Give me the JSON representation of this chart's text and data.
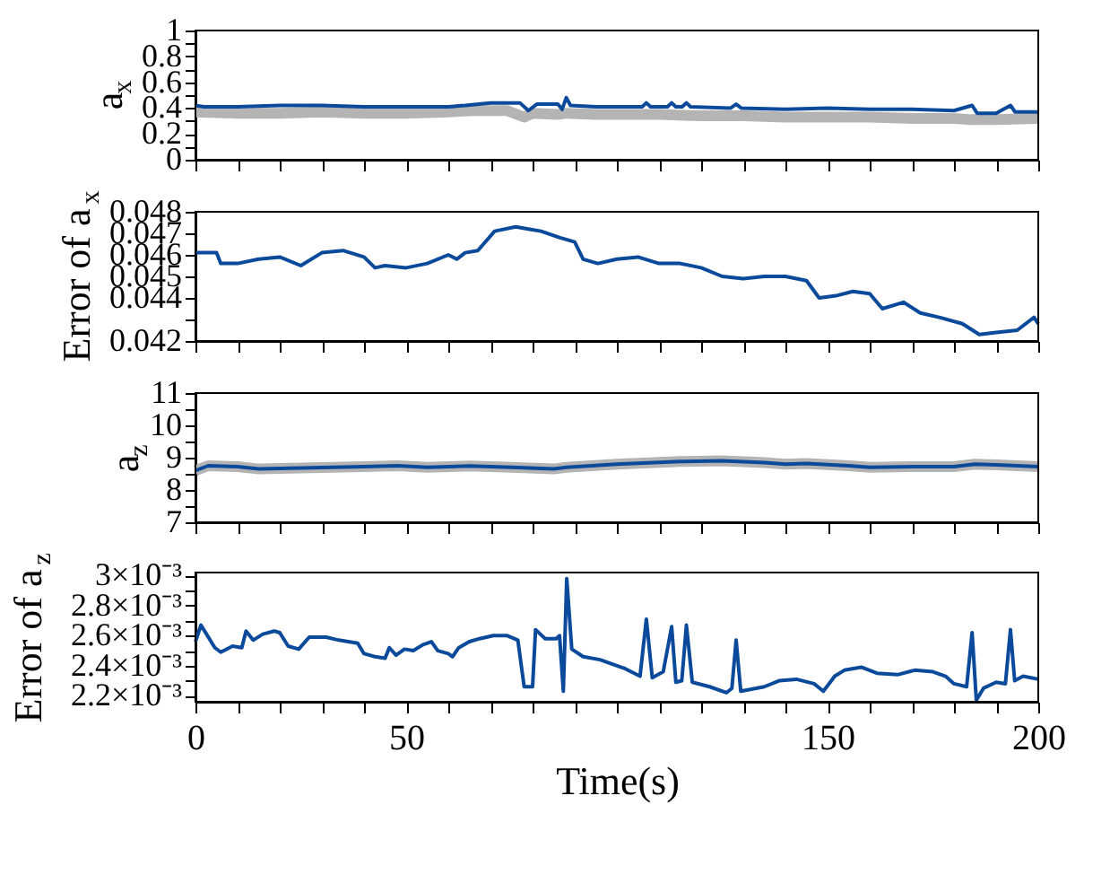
{
  "chart_data": [
    {
      "type": "line",
      "ylabel": "a$_{x}$",
      "xlim": [
        0,
        200
      ],
      "ylim": [
        0,
        1
      ],
      "tick_labels": "y",
      "grid": false,
      "marker": "none",
      "line_style": "solid",
      "xticks": [
        0,
        {
          "value": 10,
          "label": null
        },
        {
          "value": 20,
          "label": null
        },
        {
          "value": 30,
          "label": null
        },
        {
          "value": 40,
          "label": null
        },
        50,
        {
          "value": 60,
          "label": null
        },
        {
          "value": 70,
          "label": null
        },
        {
          "value": 80,
          "label": null
        },
        {
          "value": 90,
          "label": null
        },
        {
          "value": 100,
          "label": null
        },
        {
          "value": 110,
          "label": null
        },
        {
          "value": 120,
          "label": null
        },
        {
          "value": 130,
          "label": null
        },
        {
          "value": 140,
          "label": null
        },
        150,
        {
          "value": 160,
          "label": null
        },
        {
          "value": 170,
          "label": null
        },
        {
          "value": 180,
          "label": null
        },
        {
          "value": 190,
          "label": null
        },
        200
      ],
      "yticks": [
        0,
        {
          "value": 0.1,
          "label": null
        },
        0.2,
        {
          "value": 0.3,
          "label": null
        },
        0.4,
        {
          "value": 0.5,
          "label": null
        },
        0.6,
        {
          "value": 0.7,
          "label": null
        },
        0.8,
        {
          "value": 0.9,
          "label": null
        },
        1
      ],
      "series": [
        {
          "color": "#b4b4b4",
          "x": [
            0,
            10,
            20,
            30,
            40,
            50,
            60,
            66,
            74,
            78,
            80,
            86,
            88,
            95,
            100,
            110,
            120,
            130,
            140,
            150,
            160,
            170,
            180,
            184,
            190,
            200
          ],
          "values": [
            0.37,
            0.36,
            0.36,
            0.37,
            0.36,
            0.36,
            0.37,
            0.38,
            0.38,
            0.33,
            0.36,
            0.35,
            0.36,
            0.35,
            0.35,
            0.35,
            0.34,
            0.34,
            0.33,
            0.33,
            0.33,
            0.32,
            0.32,
            0.31,
            0.31,
            0.32
          ]
        },
        {
          "color": "#0b4a9b",
          "x": [
            0,
            2,
            10,
            20,
            30,
            40,
            50,
            60,
            64,
            70,
            77,
            79,
            81,
            86,
            87,
            88,
            89,
            95,
            100,
            106,
            107,
            108,
            112,
            113,
            114,
            115.5,
            116.5,
            117.5,
            127,
            128.3,
            129.5,
            140,
            150,
            160,
            170,
            180,
            184.3,
            185.5,
            190,
            193.4,
            194.5,
            200
          ],
          "values": [
            0.42,
            0.41,
            0.41,
            0.42,
            0.42,
            0.41,
            0.41,
            0.41,
            0.42,
            0.44,
            0.44,
            0.38,
            0.43,
            0.43,
            0.39,
            0.48,
            0.42,
            0.41,
            0.41,
            0.41,
            0.44,
            0.41,
            0.41,
            0.44,
            0.41,
            0.41,
            0.44,
            0.41,
            0.4,
            0.43,
            0.4,
            0.39,
            0.4,
            0.39,
            0.39,
            0.38,
            0.42,
            0.36,
            0.36,
            0.42,
            0.37,
            0.37
          ]
        }
      ]
    },
    {
      "type": "line",
      "ylabel": "Error of a$_{x}$",
      "xlim": [
        0,
        200
      ],
      "ylim": [
        0.042,
        0.048
      ],
      "tick_labels": "y",
      "grid": false,
      "marker": "none",
      "line_style": "solid",
      "xticks": [
        0,
        {
          "value": 10,
          "label": null
        },
        {
          "value": 20,
          "label": null
        },
        {
          "value": 30,
          "label": null
        },
        {
          "value": 40,
          "label": null
        },
        50,
        {
          "value": 60,
          "label": null
        },
        {
          "value": 70,
          "label": null
        },
        {
          "value": 80,
          "label": null
        },
        {
          "value": 90,
          "label": null
        },
        {
          "value": 100,
          "label": null
        },
        {
          "value": 110,
          "label": null
        },
        {
          "value": 120,
          "label": null
        },
        {
          "value": 130,
          "label": null
        },
        {
          "value": 140,
          "label": null
        },
        150,
        {
          "value": 160,
          "label": null
        },
        {
          "value": 170,
          "label": null
        },
        {
          "value": 180,
          "label": null
        },
        {
          "value": 190,
          "label": null
        },
        200
      ],
      "yticks": [
        0.042,
        {
          "value": 0.043,
          "label": null
        },
        0.044,
        0.045,
        0.046,
        0.047,
        0.048
      ],
      "series": [
        {
          "color": "#0b4a9b",
          "x": [
            0,
            5,
            6,
            10,
            15,
            20,
            25,
            30,
            35,
            40,
            42.6,
            45,
            50,
            55,
            60,
            62,
            64,
            67,
            71,
            76,
            79,
            82,
            86.5,
            90,
            92,
            95.5,
            100,
            105,
            110,
            115,
            120,
            125,
            130,
            135,
            140,
            145,
            148,
            152,
            156,
            160,
            163,
            168,
            172,
            176.5,
            182,
            186,
            190,
            195,
            199,
            200
          ],
          "values": [
            0.0461,
            0.0461,
            0.0456,
            0.0456,
            0.0458,
            0.0459,
            0.0455,
            0.0461,
            0.0462,
            0.0459,
            0.0454,
            0.0455,
            0.0454,
            0.0456,
            0.046,
            0.0458,
            0.0461,
            0.0462,
            0.0471,
            0.0473,
            0.0472,
            0.0471,
            0.0468,
            0.0466,
            0.0458,
            0.0456,
            0.0458,
            0.0459,
            0.0456,
            0.0456,
            0.0454,
            0.045,
            0.0449,
            0.045,
            0.045,
            0.0448,
            0.044,
            0.0441,
            0.0443,
            0.0442,
            0.0435,
            0.0438,
            0.0433,
            0.0431,
            0.0428,
            0.0423,
            0.0424,
            0.0425,
            0.0431,
            0.0428
          ]
        }
      ]
    },
    {
      "type": "line",
      "ylabel": "a$_{z}$",
      "xlim": [
        0,
        200
      ],
      "ylim": [
        7,
        11
      ],
      "tick_labels": "y",
      "grid": false,
      "marker": "none",
      "line_style": "solid",
      "xticks": [
        0,
        {
          "value": 10,
          "label": null
        },
        {
          "value": 20,
          "label": null
        },
        {
          "value": 30,
          "label": null
        },
        {
          "value": 40,
          "label": null
        },
        50,
        {
          "value": 60,
          "label": null
        },
        {
          "value": 70,
          "label": null
        },
        {
          "value": 80,
          "label": null
        },
        {
          "value": 90,
          "label": null
        },
        {
          "value": 100,
          "label": null
        },
        {
          "value": 110,
          "label": null
        },
        {
          "value": 120,
          "label": null
        },
        {
          "value": 130,
          "label": null
        },
        {
          "value": 140,
          "label": null
        },
        150,
        {
          "value": 160,
          "label": null
        },
        {
          "value": 170,
          "label": null
        },
        {
          "value": 180,
          "label": null
        },
        {
          "value": 190,
          "label": null
        },
        200
      ],
      "yticks": [
        7,
        {
          "value": 7.5,
          "label": null
        },
        8,
        {
          "value": 8.5,
          "label": null
        },
        9,
        {
          "value": 9.5,
          "label": null
        },
        10,
        {
          "value": 10.5,
          "label": null
        },
        11
      ],
      "series": [
        {
          "color": "#b4b4b4",
          "x": [
            0,
            3,
            10,
            15,
            25,
            40,
            48,
            55,
            65,
            75,
            85,
            88,
            100,
            115,
            125,
            135,
            140,
            145,
            155,
            160,
            170,
            180,
            185,
            190,
            200
          ],
          "values": [
            8.6,
            8.75,
            8.72,
            8.65,
            8.68,
            8.72,
            8.75,
            8.7,
            8.74,
            8.7,
            8.65,
            8.7,
            8.8,
            8.88,
            8.9,
            8.85,
            8.8,
            8.82,
            8.75,
            8.7,
            8.72,
            8.72,
            8.8,
            8.78,
            8.72
          ]
        },
        {
          "color": "#0b4a9b",
          "x": [
            0,
            3,
            10,
            15,
            25,
            40,
            48,
            55,
            65,
            75,
            85,
            88,
            100,
            115,
            125,
            135,
            140,
            145,
            155,
            160,
            170,
            180,
            185,
            190,
            200
          ],
          "values": [
            8.6,
            8.75,
            8.72,
            8.65,
            8.68,
            8.72,
            8.75,
            8.7,
            8.74,
            8.7,
            8.65,
            8.7,
            8.8,
            8.88,
            8.9,
            8.85,
            8.8,
            8.82,
            8.75,
            8.7,
            8.72,
            8.72,
            8.8,
            8.78,
            8.72
          ]
        }
      ]
    },
    {
      "type": "line",
      "ylabel": "Error of a$_{z}$",
      "xlabel": "Time(s)",
      "xlim": [
        0,
        200
      ],
      "ylim": [
        0.00216,
        0.00302
      ],
      "grid": false,
      "marker": "none",
      "line_style": "solid",
      "xticks": [
        0,
        {
          "value": 10,
          "label": null
        },
        {
          "value": 20,
          "label": null
        },
        {
          "value": 30,
          "label": null
        },
        {
          "value": 40,
          "label": null
        },
        50,
        {
          "value": 60,
          "label": null
        },
        {
          "value": 70,
          "label": null
        },
        {
          "value": 80,
          "label": null
        },
        {
          "value": 90,
          "label": null
        },
        {
          "value": 100,
          "label": null
        },
        {
          "value": 110,
          "label": null
        },
        {
          "value": 120,
          "label": null
        },
        {
          "value": 130,
          "label": null
        },
        {
          "value": 140,
          "label": null
        },
        150,
        {
          "value": 160,
          "label": null
        },
        {
          "value": 170,
          "label": null
        },
        {
          "value": 180,
          "label": null
        },
        {
          "value": 190,
          "label": null
        },
        200
      ],
      "yticks": [
        {
          "value": 0.0022,
          "label": "2.2×10⁻³"
        },
        {
          "value": 0.0023,
          "label": null
        },
        {
          "value": 0.0024,
          "label": "2.4×10⁻³"
        },
        {
          "value": 0.0025,
          "label": null
        },
        {
          "value": 0.0026,
          "label": "2.6×10⁻³"
        },
        {
          "value": 0.0027,
          "label": null
        },
        {
          "value": 0.0028,
          "label": "2.8×10⁻³"
        },
        {
          "value": 0.0029,
          "label": null
        },
        {
          "value": 0.003,
          "label": "3×10⁻³"
        }
      ],
      "series": [
        {
          "color": "#0b4a9b",
          "x": [
            0,
            1.3,
            4.6,
            6,
            8.8,
            11,
            12,
            13.7,
            16,
            18.7,
            20,
            22,
            24.5,
            27,
            31,
            34,
            38.5,
            40,
            42.6,
            45,
            46,
            47.6,
            49.6,
            51.7,
            54,
            56,
            57.5,
            60,
            61,
            62.5,
            65,
            67.4,
            70.7,
            74,
            76.5,
            78,
            80,
            80.7,
            83,
            85.6,
            86.4,
            87.3,
            88.1,
            89.3,
            92,
            96,
            100,
            102,
            105.5,
            107,
            108.4,
            111,
            113,
            114,
            115.4,
            116.5,
            117.9,
            122,
            126,
            127.3,
            128.3,
            129.4,
            135,
            138.5,
            142.6,
            146.8,
            149,
            151.7,
            154,
            158,
            161.7,
            166.6,
            170.7,
            175,
            178,
            180,
            183,
            184.3,
            185.3,
            187,
            190,
            192.2,
            193.4,
            194.4,
            196.4,
            200
          ],
          "values": [
            0.00256,
            0.00267,
            0.00252,
            0.00249,
            0.00253,
            0.00252,
            0.00263,
            0.00257,
            0.00261,
            0.00263,
            0.00262,
            0.00253,
            0.00251,
            0.00259,
            0.00259,
            0.00257,
            0.00255,
            0.00248,
            0.00246,
            0.00245,
            0.00252,
            0.00247,
            0.00251,
            0.0025,
            0.00254,
            0.00256,
            0.0025,
            0.00248,
            0.00246,
            0.00252,
            0.00256,
            0.00258,
            0.0026,
            0.0026,
            0.00257,
            0.00226,
            0.00226,
            0.00264,
            0.00258,
            0.00258,
            0.0026,
            0.00223,
            0.00298,
            0.00251,
            0.00246,
            0.00244,
            0.0024,
            0.00238,
            0.00233,
            0.00271,
            0.00232,
            0.00236,
            0.00266,
            0.00229,
            0.0023,
            0.00267,
            0.00229,
            0.00226,
            0.00222,
            0.00225,
            0.00257,
            0.00223,
            0.00226,
            0.0023,
            0.00231,
            0.00228,
            0.00223,
            0.00233,
            0.00237,
            0.00239,
            0.00235,
            0.00234,
            0.00237,
            0.00236,
            0.00233,
            0.00228,
            0.00226,
            0.00262,
            0.00217,
            0.00225,
            0.00229,
            0.00228,
            0.00264,
            0.0023,
            0.00233,
            0.00231
          ]
        }
      ]
    }
  ]
}
